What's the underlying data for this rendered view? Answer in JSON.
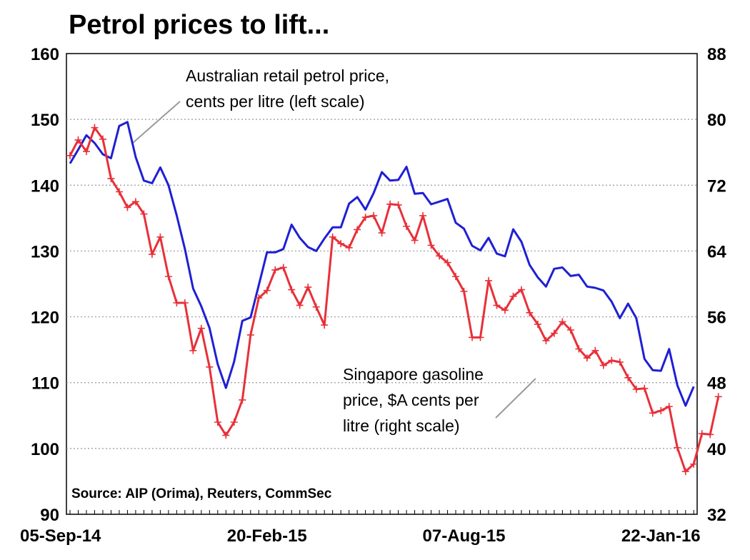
{
  "chart_data": {
    "type": "line",
    "title": "Petrol prices to lift...",
    "source": "Source: AIP (Orima), Reuters, CommSec",
    "x_tick_labels": [
      "05-Sep-14",
      "20-Feb-15",
      "07-Aug-15",
      "22-Jan-16"
    ],
    "x_tick_index": [
      0,
      24,
      48,
      72
    ],
    "y_left": {
      "range": [
        90,
        160
      ],
      "ticks": [
        "90",
        "100",
        "110",
        "120",
        "130",
        "140",
        "150",
        "160"
      ]
    },
    "y_right": {
      "range": [
        32,
        88
      ],
      "ticks": [
        "32",
        "40",
        "48",
        "56",
        "64",
        "72",
        "80",
        "88"
      ]
    },
    "grid": true,
    "series": [
      {
        "name": "Australian retail petrol price, cents per litre (left scale)",
        "axis": "left",
        "color": "#1f1fd6",
        "marker": "none",
        "values": [
          143.3,
          145.4,
          147.6,
          146.4,
          144.7,
          144.1,
          149.0,
          149.6,
          144.3,
          140.7,
          140.3,
          142.7,
          140.0,
          135.4,
          130.3,
          124.3,
          121.6,
          118.3,
          112.8,
          109.2,
          113.2,
          119.4,
          119.9,
          124.8,
          129.8,
          129.8,
          130.3,
          134.0,
          132.0,
          130.6,
          130.0,
          131.9,
          133.6,
          133.6,
          137.2,
          138.2,
          136.3,
          138.8,
          142.0,
          140.7,
          140.8,
          142.8,
          138.7,
          138.8,
          137.1,
          137.5,
          137.9,
          134.3,
          133.4,
          130.8,
          130.1,
          132.0,
          129.6,
          129.2,
          133.3,
          131.4,
          127.9,
          126.0,
          124.6,
          127.3,
          127.5,
          126.2,
          126.4,
          124.6,
          124.4,
          124.0,
          122.3,
          119.8,
          122.0,
          119.8,
          113.6,
          111.9,
          111.8,
          115.1,
          109.6,
          106.5,
          109.4
        ]
      },
      {
        "name": "Singapore gasoline price, $A cents per litre (right scale)",
        "axis": "right",
        "color": "#e8303a",
        "marker": "plus",
        "values": [
          75.6,
          77.5,
          76.1,
          79.0,
          77.6,
          72.8,
          71.2,
          69.3,
          70.0,
          68.5,
          63.6,
          65.7,
          60.9,
          57.7,
          57.7,
          51.9,
          54.6,
          49.9,
          43.2,
          41.6,
          43.2,
          45.9,
          53.8,
          58.3,
          59.2,
          61.7,
          62.0,
          59.3,
          57.4,
          59.6,
          57.2,
          55.0,
          65.7,
          64.9,
          64.4,
          66.6,
          68.1,
          68.3,
          66.2,
          69.7,
          69.6,
          67.0,
          65.3,
          68.3,
          64.7,
          63.4,
          62.6,
          60.9,
          59.1,
          53.5,
          53.5,
          60.4,
          57.4,
          56.8,
          58.5,
          59.3,
          56.5,
          55.1,
          53.1,
          54.0,
          55.4,
          54.4,
          52.1,
          51.0,
          51.9,
          50.1,
          50.7,
          50.5,
          48.6,
          47.2,
          47.3,
          44.3,
          44.6,
          45.1,
          40.1,
          37.2,
          38.1,
          41.8,
          41.7,
          46.3
        ]
      }
    ],
    "annotations": [
      {
        "target": "series-0",
        "lines": [
          "Australian retail petrol price,",
          "cents per litre (left scale)"
        ]
      },
      {
        "target": "series-1",
        "lines": [
          "Singapore gasoline",
          "price, $A cents per",
          "litre (right scale)"
        ]
      }
    ]
  }
}
